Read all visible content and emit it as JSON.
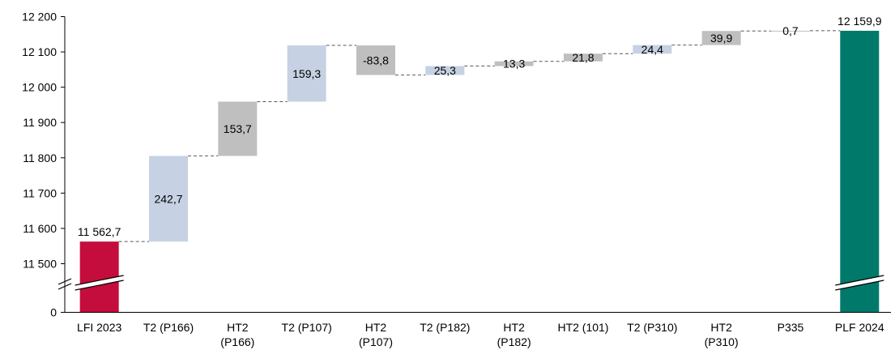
{
  "chart_data": {
    "type": "bar",
    "subtype": "waterfall",
    "title": "",
    "xlabel": "",
    "ylabel": "",
    "y_axis_break": true,
    "y_ticks": [
      "0",
      "11 500",
      "11 600",
      "11 700",
      "11 800",
      "11 900",
      "12 000",
      "12 100",
      "12 200"
    ],
    "ylim": [
      11500,
      12200
    ],
    "grid": false,
    "categories": [
      {
        "lines": [
          "LFI 2023"
        ]
      },
      {
        "lines": [
          "T2 (P166)"
        ]
      },
      {
        "lines": [
          "HT2",
          "(P166)"
        ]
      },
      {
        "lines": [
          "T2 (P107)"
        ]
      },
      {
        "lines": [
          "HT2",
          "(P107)"
        ]
      },
      {
        "lines": [
          "T2 (P182)"
        ]
      },
      {
        "lines": [
          "HT2",
          "(P182)"
        ]
      },
      {
        "lines": [
          "HT2 (101)"
        ]
      },
      {
        "lines": [
          "T2 (P310)"
        ]
      },
      {
        "lines": [
          "HT2",
          "(P310)"
        ]
      },
      {
        "lines": [
          "P335"
        ]
      },
      {
        "lines": [
          "PLF 2024"
        ]
      }
    ],
    "bars": [
      {
        "kind": "total",
        "value": 11562.7,
        "label": "11 562,7",
        "color": "#c40d3c"
      },
      {
        "kind": "delta",
        "value": 242.7,
        "label": "242,7",
        "color": "#c6d2e3"
      },
      {
        "kind": "delta",
        "value": 153.7,
        "label": "153,7",
        "color": "#bfbfbf"
      },
      {
        "kind": "delta",
        "value": 159.3,
        "label": "159,3",
        "color": "#c6d2e3"
      },
      {
        "kind": "delta",
        "value": -83.8,
        "label": "-83,8",
        "color": "#bfbfbf"
      },
      {
        "kind": "delta",
        "value": 25.3,
        "label": "25,3",
        "color": "#c6d2e3"
      },
      {
        "kind": "delta",
        "value": 13.3,
        "label": "13,3",
        "color": "#bfbfbf"
      },
      {
        "kind": "delta",
        "value": 21.8,
        "label": "21,8",
        "color": "#bfbfbf"
      },
      {
        "kind": "delta",
        "value": 24.4,
        "label": "24,4",
        "color": "#c6d2e3"
      },
      {
        "kind": "delta",
        "value": 39.9,
        "label": "39,9",
        "color": "#bfbfbf"
      },
      {
        "kind": "delta",
        "value": 0.7,
        "label": "0,7",
        "color": "#bfbfbf"
      },
      {
        "kind": "total",
        "value": 12159.9,
        "label": "12 159,9",
        "color": "#00796b"
      }
    ]
  }
}
